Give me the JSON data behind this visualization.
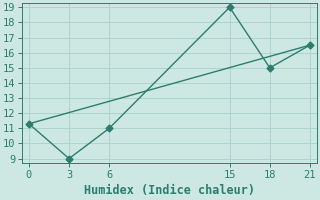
{
  "xlabel": "Humidex (Indice chaleur)",
  "line1_x": [
    0,
    3,
    6,
    15,
    18,
    21
  ],
  "line1_y": [
    11.3,
    9.0,
    11.0,
    19.0,
    15.0,
    16.5
  ],
  "line2_x": [
    0,
    21
  ],
  "line2_y": [
    11.3,
    16.5
  ],
  "line_color": "#2d7d6e",
  "marker": "D",
  "marker_size": 3.5,
  "bg_color": "#cde8e3",
  "grid_color": "#aed4ce",
  "xlim": [
    -0.5,
    21.5
  ],
  "ylim": [
    8.7,
    19.3
  ],
  "xticks": [
    0,
    3,
    6,
    15,
    18,
    21
  ],
  "yticks": [
    9,
    10,
    11,
    12,
    13,
    14,
    15,
    16,
    17,
    18,
    19
  ],
  "xlabel_fontsize": 8.5,
  "tick_fontsize": 7.5
}
